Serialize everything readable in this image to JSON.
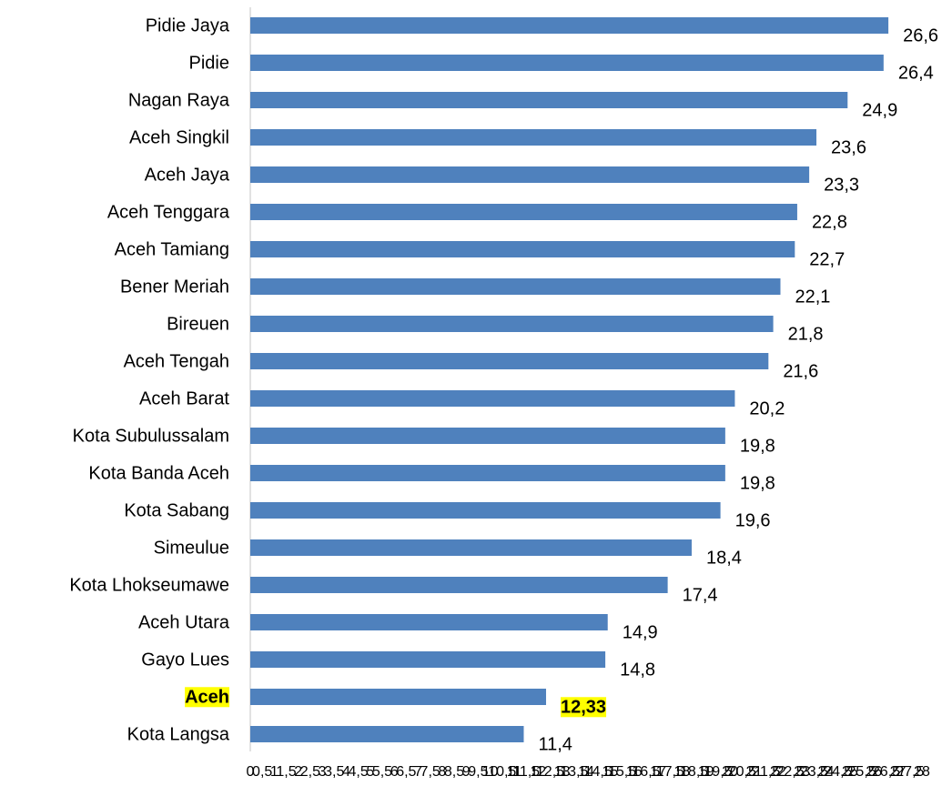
{
  "chart_data": {
    "type": "barh",
    "categories": [
      "Pidie Jaya",
      "Pidie",
      "Nagan Raya",
      "Aceh Singkil",
      "Aceh Jaya",
      "Aceh Tenggara",
      "Aceh Tamiang",
      "Bener Meriah",
      "Bireuen",
      "Aceh Tengah",
      "Aceh Barat",
      "Kota Subulussalam",
      "Kota Banda Aceh",
      "Kota Sabang",
      "Simeulue",
      "Kota Lhokseumawe",
      "Aceh Utara",
      "Gayo Lues",
      "Aceh",
      "Kota Langsa"
    ],
    "values": [
      26.6,
      26.4,
      24.9,
      23.6,
      23.3,
      22.8,
      22.7,
      22.1,
      21.8,
      21.6,
      20.2,
      19.8,
      19.8,
      19.6,
      18.4,
      17.4,
      14.9,
      14.8,
      12.33,
      11.4
    ],
    "value_labels": [
      "26,6",
      "26,4",
      "24,9",
      "23,6",
      "23,3",
      "22,8",
      "22,7",
      "22,1",
      "21,8",
      "21,6",
      "20,2",
      "19,8",
      "19,8",
      "19,6",
      "18,4",
      "17,4",
      "14,9",
      "14,8",
      "12,33",
      "11,4"
    ],
    "color": "#4f81bd",
    "highlight_category": "Aceh",
    "highlight_color": "#ffff00",
    "xlim": [
      0,
      28
    ],
    "xticks": [
      0,
      {
        "value": 0.5,
        "label": "0,5"
      },
      1,
      {
        "value": 1.5,
        "label": "1,5"
      },
      2,
      {
        "value": 2.5,
        "label": "2,5"
      },
      3,
      {
        "value": 3.5,
        "label": "3,5"
      },
      4,
      {
        "value": 4.5,
        "label": "4,5"
      },
      5,
      {
        "value": 5.5,
        "label": "5,5"
      },
      6,
      {
        "value": 6.5,
        "label": "6,5"
      },
      7,
      {
        "value": 7.5,
        "label": "7,5"
      },
      8,
      {
        "value": 8.5,
        "label": "8,5"
      },
      9,
      {
        "value": 9.5,
        "label": "9,5"
      },
      10,
      {
        "value": 10.5,
        "label": "10,5"
      },
      11,
      {
        "value": 11.5,
        "label": "11,5"
      },
      12,
      {
        "value": 12.5,
        "label": "12,5"
      },
      13,
      {
        "value": 13.5,
        "label": "13,5"
      },
      14,
      {
        "value": 14.5,
        "label": "14,5"
      },
      15,
      {
        "value": 15.5,
        "label": "15,5"
      },
      16,
      {
        "value": 16.5,
        "label": "16,5"
      },
      17,
      {
        "value": 17.5,
        "label": "17,5"
      },
      18,
      {
        "value": 18.5,
        "label": "18,5"
      },
      19,
      {
        "value": 19.5,
        "label": "19,5"
      },
      20,
      {
        "value": 20.5,
        "label": "20,5"
      },
      21,
      {
        "value": 21.5,
        "label": "21,5"
      },
      22,
      {
        "value": 22.5,
        "label": "22,5"
      },
      23,
      {
        "value": 23.5,
        "label": "23,5"
      },
      24,
      {
        "value": 24.5,
        "label": "24,5"
      },
      25,
      {
        "value": 25.5,
        "label": "25,5"
      },
      26,
      {
        "value": 26.5,
        "label": "26,5"
      },
      27,
      {
        "value": 27.5,
        "label": "27,5"
      },
      28
    ],
    "grid": false
  }
}
